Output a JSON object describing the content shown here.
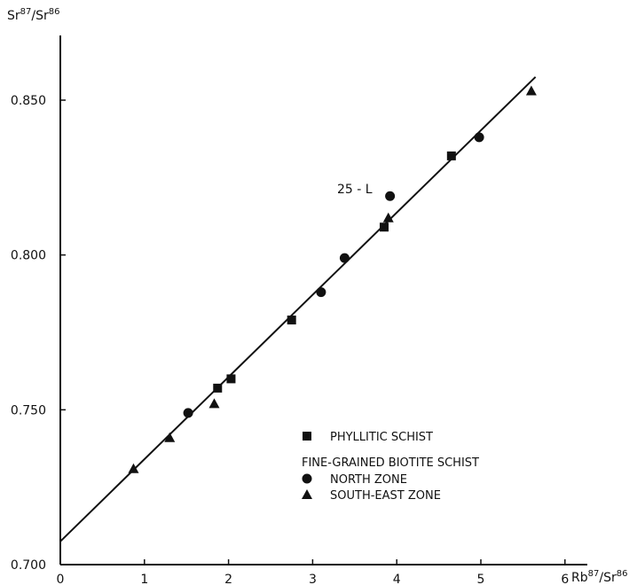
{
  "chart_data": {
    "type": "scatter",
    "title": "",
    "xlabel": {
      "base": "Rb",
      "sup1": "87",
      "mid": "/Sr",
      "sup2": "86"
    },
    "ylabel": {
      "base": "Sr",
      "sup1": "87",
      "mid": "/Sr",
      "sup2": "86"
    },
    "xlim": [
      0,
      6.3
    ],
    "ylim": [
      0.7,
      0.87
    ],
    "x_ticks": [
      0,
      1,
      2,
      3,
      4,
      5,
      6
    ],
    "x_tick_labels": [
      "0",
      "1",
      "2",
      "3",
      "4",
      "5",
      "6"
    ],
    "y_ticks": [
      0.7,
      0.75,
      0.8,
      0.85
    ],
    "y_tick_labels": [
      "0.700",
      "0.750",
      "0.800",
      "0.850"
    ],
    "grid": false,
    "legend_position": "bottom-right",
    "regression_line": {
      "x": [
        0,
        5.65
      ],
      "y": [
        0.7075,
        0.8575
      ]
    },
    "series": [
      {
        "name": "PHYLLITIC SCHIST",
        "marker": "square",
        "x": [
          1.87,
          2.03,
          2.75,
          3.85,
          4.65
        ],
        "y": [
          0.757,
          0.76,
          0.779,
          0.809,
          0.832
        ]
      },
      {
        "name": "NORTH ZONE",
        "marker": "circle",
        "x": [
          1.52,
          3.1,
          3.38,
          3.92,
          4.98
        ],
        "y": [
          0.749,
          0.788,
          0.799,
          0.819,
          0.838
        ]
      },
      {
        "name": "SOUTH-EAST ZONE",
        "marker": "triangle",
        "x": [
          0.87,
          1.3,
          1.83,
          3.9,
          5.6
        ],
        "y": [
          0.731,
          0.741,
          0.752,
          0.812,
          0.853
        ]
      }
    ],
    "legend_group_heading": "FINE-GRAINED BIOTITE SCHIST",
    "annotations": [
      {
        "text": "25 - L",
        "x": 3.92,
        "y": 0.819
      }
    ]
  }
}
